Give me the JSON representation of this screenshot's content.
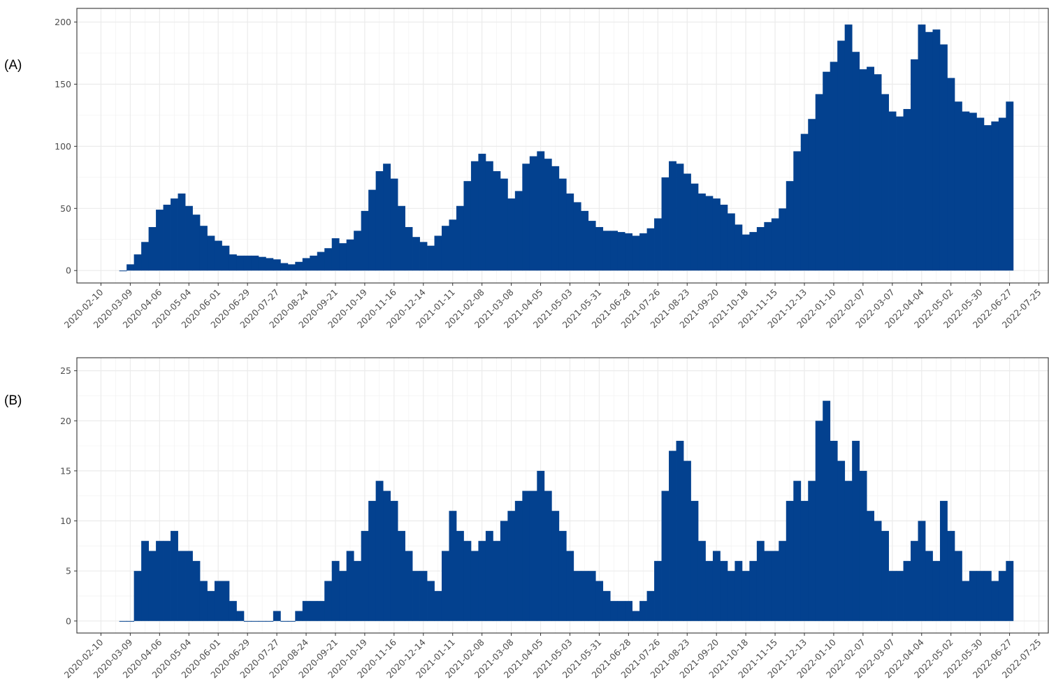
{
  "chart_data": [
    {
      "type": "bar",
      "panel_label": "(A)",
      "color": "#03418f",
      "grid": true,
      "x": [
        "2020-03-02",
        "2020-03-09",
        "2020-03-16",
        "2020-03-23",
        "2020-03-30",
        "2020-04-06",
        "2020-04-13",
        "2020-04-20",
        "2020-04-27",
        "2020-05-04",
        "2020-05-11",
        "2020-05-18",
        "2020-05-25",
        "2020-06-01",
        "2020-06-08",
        "2020-06-15",
        "2020-06-22",
        "2020-06-29",
        "2020-07-06",
        "2020-07-13",
        "2020-07-20",
        "2020-07-27",
        "2020-08-03",
        "2020-08-10",
        "2020-08-17",
        "2020-08-24",
        "2020-08-31",
        "2020-09-07",
        "2020-09-14",
        "2020-09-21",
        "2020-09-28",
        "2020-10-05",
        "2020-10-12",
        "2020-10-19",
        "2020-10-26",
        "2020-11-02",
        "2020-11-09",
        "2020-11-16",
        "2020-11-23",
        "2020-11-30",
        "2020-12-07",
        "2020-12-14",
        "2020-12-21",
        "2020-12-28",
        "2021-01-04",
        "2021-01-11",
        "2021-01-18",
        "2021-01-25",
        "2021-02-01",
        "2021-02-08",
        "2021-02-15",
        "2021-02-22",
        "2021-03-01",
        "2021-03-08",
        "2021-03-15",
        "2021-03-22",
        "2021-03-29",
        "2021-04-05",
        "2021-04-12",
        "2021-04-19",
        "2021-04-26",
        "2021-05-03",
        "2021-05-10",
        "2021-05-17",
        "2021-05-24",
        "2021-05-31",
        "2021-06-07",
        "2021-06-14",
        "2021-06-21",
        "2021-06-28",
        "2021-07-05",
        "2021-07-12",
        "2021-07-19",
        "2021-07-26",
        "2021-08-02",
        "2021-08-09",
        "2021-08-16",
        "2021-08-23",
        "2021-08-30",
        "2021-09-06",
        "2021-09-13",
        "2021-09-20",
        "2021-09-27",
        "2021-10-04",
        "2021-10-11",
        "2021-10-18",
        "2021-10-25",
        "2021-11-01",
        "2021-11-08",
        "2021-11-15",
        "2021-11-22",
        "2021-11-29",
        "2021-12-06",
        "2021-12-13",
        "2021-12-20",
        "2021-12-27",
        "2022-01-03",
        "2022-01-10",
        "2022-01-17",
        "2022-01-24",
        "2022-01-31",
        "2022-02-07",
        "2022-02-14",
        "2022-02-21",
        "2022-02-28",
        "2022-03-07",
        "2022-03-14",
        "2022-03-21",
        "2022-03-28",
        "2022-04-04",
        "2022-04-11",
        "2022-04-18",
        "2022-04-25",
        "2022-05-02",
        "2022-05-09",
        "2022-05-16",
        "2022-05-23",
        "2022-05-30",
        "2022-06-06",
        "2022-06-13",
        "2022-06-20",
        "2022-06-27"
      ],
      "values": [
        0,
        5,
        13,
        23,
        35,
        49,
        53,
        58,
        62,
        52,
        45,
        36,
        28,
        24,
        20,
        13,
        12,
        12,
        12,
        11,
        10,
        9,
        6,
        5,
        7,
        10,
        12,
        15,
        18,
        26,
        22,
        25,
        32,
        48,
        65,
        80,
        86,
        74,
        52,
        35,
        27,
        23,
        20,
        28,
        36,
        41,
        52,
        72,
        88,
        94,
        88,
        80,
        74,
        58,
        64,
        86,
        92,
        96,
        90,
        84,
        74,
        62,
        55,
        48,
        40,
        35,
        32,
        32,
        31,
        30,
        28,
        30,
        34,
        42,
        75,
        88,
        86,
        78,
        70,
        62,
        60,
        58,
        53,
        46,
        37,
        29,
        31,
        35,
        39,
        42,
        50,
        72,
        96,
        110,
        122,
        142,
        160,
        168,
        185,
        198,
        176,
        162,
        164,
        158,
        142,
        128,
        124,
        130,
        170,
        198,
        192,
        194,
        182,
        155,
        136,
        128,
        127,
        123,
        117,
        120,
        123,
        136
      ],
      "xlim": [
        "2020-01-18",
        "2022-08-03"
      ],
      "ylim": [
        -10,
        211
      ],
      "yticks": [
        0,
        50,
        100,
        150,
        200
      ],
      "xticks": [
        "2020-02-10",
        "2020-03-09",
        "2020-04-06",
        "2020-05-04",
        "2020-06-01",
        "2020-06-29",
        "2020-07-27",
        "2020-08-24",
        "2020-09-21",
        "2020-10-19",
        "2020-11-16",
        "2020-12-14",
        "2021-01-11",
        "2021-02-08",
        "2021-03-08",
        "2021-04-05",
        "2021-05-03",
        "2021-05-31",
        "2021-06-28",
        "2021-07-26",
        "2021-08-23",
        "2021-09-20",
        "2021-10-18",
        "2021-11-15",
        "2021-12-13",
        "2022-01-10",
        "2022-02-07",
        "2022-03-07",
        "2022-04-04",
        "2022-05-02",
        "2022-05-30",
        "2022-06-27",
        "2022-07-25"
      ]
    },
    {
      "type": "bar",
      "panel_label": "(B)",
      "color": "#03418f",
      "grid": true,
      "x": [
        "2020-03-02",
        "2020-03-09",
        "2020-03-16",
        "2020-03-23",
        "2020-03-30",
        "2020-04-06",
        "2020-04-13",
        "2020-04-20",
        "2020-04-27",
        "2020-05-04",
        "2020-05-11",
        "2020-05-18",
        "2020-05-25",
        "2020-06-01",
        "2020-06-08",
        "2020-06-15",
        "2020-06-22",
        "2020-06-29",
        "2020-07-06",
        "2020-07-13",
        "2020-07-20",
        "2020-07-27",
        "2020-08-03",
        "2020-08-10",
        "2020-08-17",
        "2020-08-24",
        "2020-08-31",
        "2020-09-07",
        "2020-09-14",
        "2020-09-21",
        "2020-09-28",
        "2020-10-05",
        "2020-10-12",
        "2020-10-19",
        "2020-10-26",
        "2020-11-02",
        "2020-11-09",
        "2020-11-16",
        "2020-11-23",
        "2020-11-30",
        "2020-12-07",
        "2020-12-14",
        "2020-12-21",
        "2020-12-28",
        "2021-01-04",
        "2021-01-11",
        "2021-01-18",
        "2021-01-25",
        "2021-02-01",
        "2021-02-08",
        "2021-02-15",
        "2021-02-22",
        "2021-03-01",
        "2021-03-08",
        "2021-03-15",
        "2021-03-22",
        "2021-03-29",
        "2021-04-05",
        "2021-04-12",
        "2021-04-19",
        "2021-04-26",
        "2021-05-03",
        "2021-05-10",
        "2021-05-17",
        "2021-05-24",
        "2021-05-31",
        "2021-06-07",
        "2021-06-14",
        "2021-06-21",
        "2021-06-28",
        "2021-07-05",
        "2021-07-12",
        "2021-07-19",
        "2021-07-26",
        "2021-08-02",
        "2021-08-09",
        "2021-08-16",
        "2021-08-23",
        "2021-08-30",
        "2021-09-06",
        "2021-09-13",
        "2021-09-20",
        "2021-09-27",
        "2021-10-04",
        "2021-10-11",
        "2021-10-18",
        "2021-10-25",
        "2021-11-01",
        "2021-11-08",
        "2021-11-15",
        "2021-11-22",
        "2021-11-29",
        "2021-12-06",
        "2021-12-13",
        "2021-12-20",
        "2021-12-27",
        "2022-01-03",
        "2022-01-10",
        "2022-01-17",
        "2022-01-24",
        "2022-01-31",
        "2022-02-07",
        "2022-02-14",
        "2022-02-21",
        "2022-02-28",
        "2022-03-07",
        "2022-03-14",
        "2022-03-21",
        "2022-03-28",
        "2022-04-04",
        "2022-04-11",
        "2022-04-18",
        "2022-04-25",
        "2022-05-02",
        "2022-05-09",
        "2022-05-16",
        "2022-05-23",
        "2022-05-30",
        "2022-06-06",
        "2022-06-13",
        "2022-06-20",
        "2022-06-27"
      ],
      "values": [
        0,
        0,
        5,
        8,
        7,
        8,
        8,
        9,
        7,
        7,
        6,
        4,
        3,
        4,
        4,
        2,
        1,
        0,
        0,
        0,
        0,
        1,
        0,
        0,
        1,
        2,
        2,
        2,
        4,
        6,
        5,
        7,
        6,
        9,
        12,
        14,
        13,
        12,
        9,
        7,
        5,
        5,
        4,
        3,
        7,
        11,
        9,
        8,
        7,
        8,
        9,
        8,
        10,
        11,
        12,
        13,
        13,
        15,
        13,
        11,
        9,
        7,
        5,
        5,
        5,
        4,
        3,
        2,
        2,
        2,
        1,
        2,
        3,
        6,
        13,
        17,
        18,
        16,
        12,
        8,
        6,
        7,
        6,
        5,
        6,
        5,
        6,
        8,
        7,
        7,
        8,
        12,
        14,
        12,
        14,
        20,
        22,
        18,
        16,
        14,
        18,
        15,
        11,
        10,
        9,
        5,
        5,
        6,
        8,
        10,
        7,
        6,
        12,
        9,
        7,
        4,
        5,
        5,
        5,
        4,
        5,
        6
      ],
      "xlim": [
        "2020-01-18",
        "2022-08-03"
      ],
      "ylim": [
        -1.2,
        26.3
      ],
      "yticks": [
        0,
        5,
        10,
        15,
        20,
        25
      ],
      "xticks": [
        "2020-02-10",
        "2020-03-09",
        "2020-04-06",
        "2020-05-04",
        "2020-06-01",
        "2020-06-29",
        "2020-07-27",
        "2020-08-24",
        "2020-09-21",
        "2020-10-19",
        "2020-11-16",
        "2020-12-14",
        "2021-01-11",
        "2021-02-08",
        "2021-03-08",
        "2021-04-05",
        "2021-05-03",
        "2021-05-31",
        "2021-06-28",
        "2021-07-26",
        "2021-08-23",
        "2021-09-20",
        "2021-10-18",
        "2021-11-15",
        "2021-12-13",
        "2022-01-10",
        "2022-02-07",
        "2022-03-07",
        "2022-04-04",
        "2022-05-02",
        "2022-05-30",
        "2022-06-27",
        "2022-07-25"
      ]
    }
  ]
}
